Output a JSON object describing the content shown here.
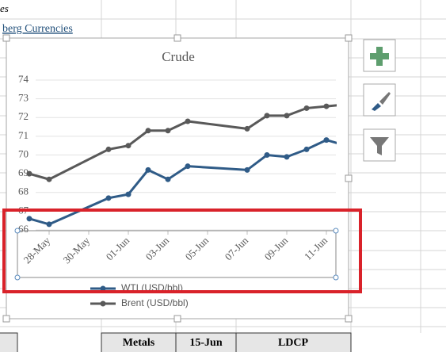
{
  "spreadsheet": {
    "top_text": "es",
    "link": "berg Currencies",
    "cells": [
      "Metals",
      "15-Jun",
      "LDCP"
    ]
  },
  "chart_data": {
    "type": "line",
    "title": "Crude",
    "x": [
      "27-May",
      "28-May",
      "31-May",
      "01-Jun",
      "02-Jun",
      "03-Jun",
      "04-Jun",
      "07-Jun",
      "08-Jun",
      "09-Jun",
      "10-Jun",
      "11-Jun",
      "12-Jun"
    ],
    "series": [
      {
        "name": "WTI (USD/bbl)",
        "color": "#2f5b87",
        "values": [
          66.6,
          66.3,
          67.7,
          67.9,
          69.2,
          68.7,
          69.4,
          69.2,
          70.0,
          69.9,
          70.3,
          70.8,
          70.5
        ]
      },
      {
        "name": "Brent (USD/bbl)",
        "color": "#595959",
        "values": [
          69.0,
          68.7,
          70.3,
          70.5,
          71.3,
          71.3,
          71.8,
          71.4,
          72.1,
          72.1,
          72.5,
          72.6,
          72.7
        ]
      }
    ],
    "xlim": [
      "27-May",
      "12-Jun"
    ],
    "xticks": [
      "28-May",
      "30-May",
      "01-Jun",
      "03-Jun",
      "05-Jun",
      "07-Jun",
      "09-Jun",
      "11-Jun"
    ],
    "ylim": [
      66,
      74
    ],
    "yticks": [
      66,
      67,
      68,
      69,
      70,
      71,
      72,
      73,
      74
    ],
    "grid": true
  }
}
